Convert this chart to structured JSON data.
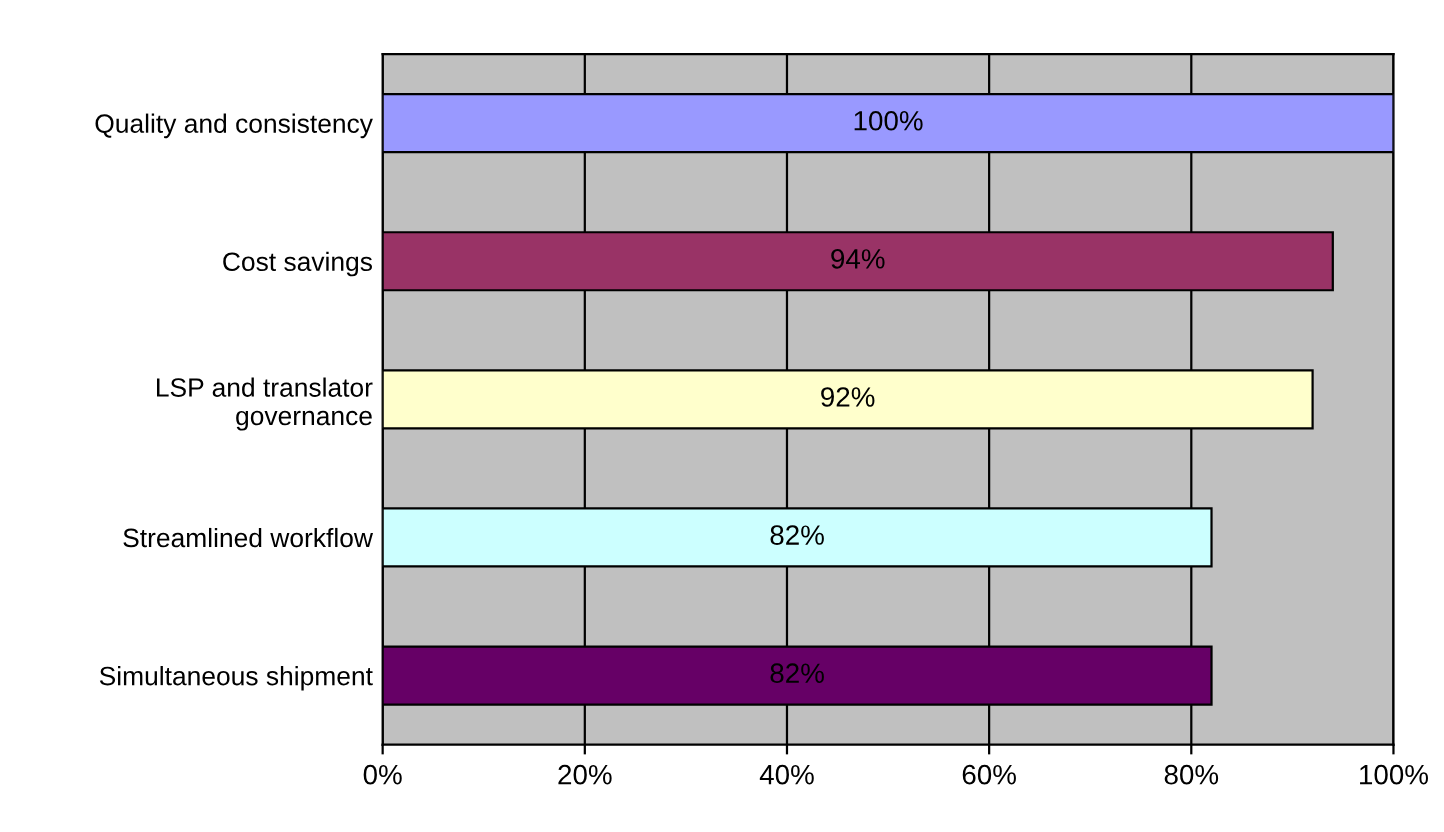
{
  "chart_data": {
    "type": "bar",
    "orientation": "horizontal",
    "categories": [
      "Quality and consistency",
      "Cost savings",
      "LSP and translator governance",
      "Streamlined workflow",
      "Simultaneous shipment"
    ],
    "values": [
      100,
      94,
      92,
      82,
      82
    ],
    "colors": [
      "#9999ff",
      "#993366",
      "#ffffcc",
      "#ccffff",
      "#660066"
    ],
    "value_labels": [
      "100%",
      "94%",
      "92%",
      "82%",
      "82%"
    ],
    "xlim": [
      0,
      100
    ],
    "xticks": [
      {
        "value": 0,
        "label": "0%"
      },
      {
        "value": 20,
        "label": "20%"
      },
      {
        "value": 40,
        "label": "40%"
      },
      {
        "value": 60,
        "label": "60%"
      },
      {
        "value": 80,
        "label": "80%"
      },
      {
        "value": 100,
        "label": "100%"
      }
    ],
    "grid": "x"
  }
}
